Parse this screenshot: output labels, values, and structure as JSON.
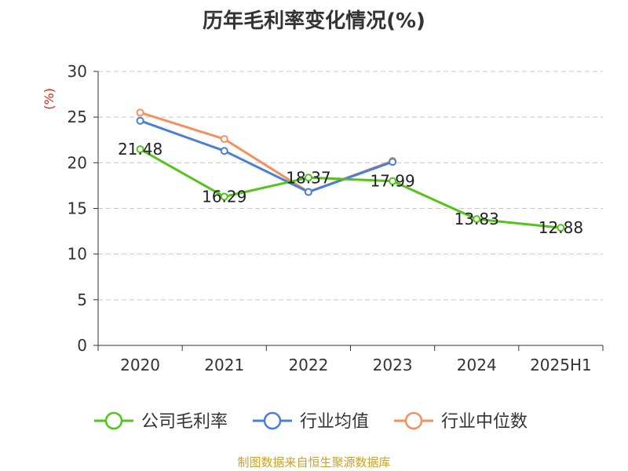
{
  "title": "历年毛利率变化情况(%)",
  "source": "制图数据来自恒生聚源数据库",
  "chart_data": {
    "type": "line",
    "title": "历年毛利率变化情况(%)",
    "ylabel": "(%)",
    "ylim": [
      0,
      30
    ],
    "yticks": [
      0,
      5,
      10,
      15,
      20,
      25,
      30
    ],
    "grid": true,
    "legend_position": "bottom",
    "categories": [
      "2020",
      "2021",
      "2022",
      "2023",
      "2024",
      "2025H1"
    ],
    "series": [
      {
        "name": "公司毛利率",
        "color": "#52c41a",
        "values": [
          21.48,
          16.29,
          18.37,
          17.99,
          13.83,
          12.88
        ],
        "labels": [
          "21.48",
          "16.29",
          "18.37",
          "17.99",
          "13.83",
          "12.88"
        ]
      },
      {
        "name": "行业均值",
        "color": "#4a7fd8",
        "values": [
          24.6,
          21.3,
          16.8,
          20.1,
          null,
          null
        ]
      },
      {
        "name": "行业中位数",
        "color": "#f58f5f",
        "values": [
          25.5,
          22.6,
          16.8,
          20.2,
          null,
          null
        ]
      }
    ]
  }
}
